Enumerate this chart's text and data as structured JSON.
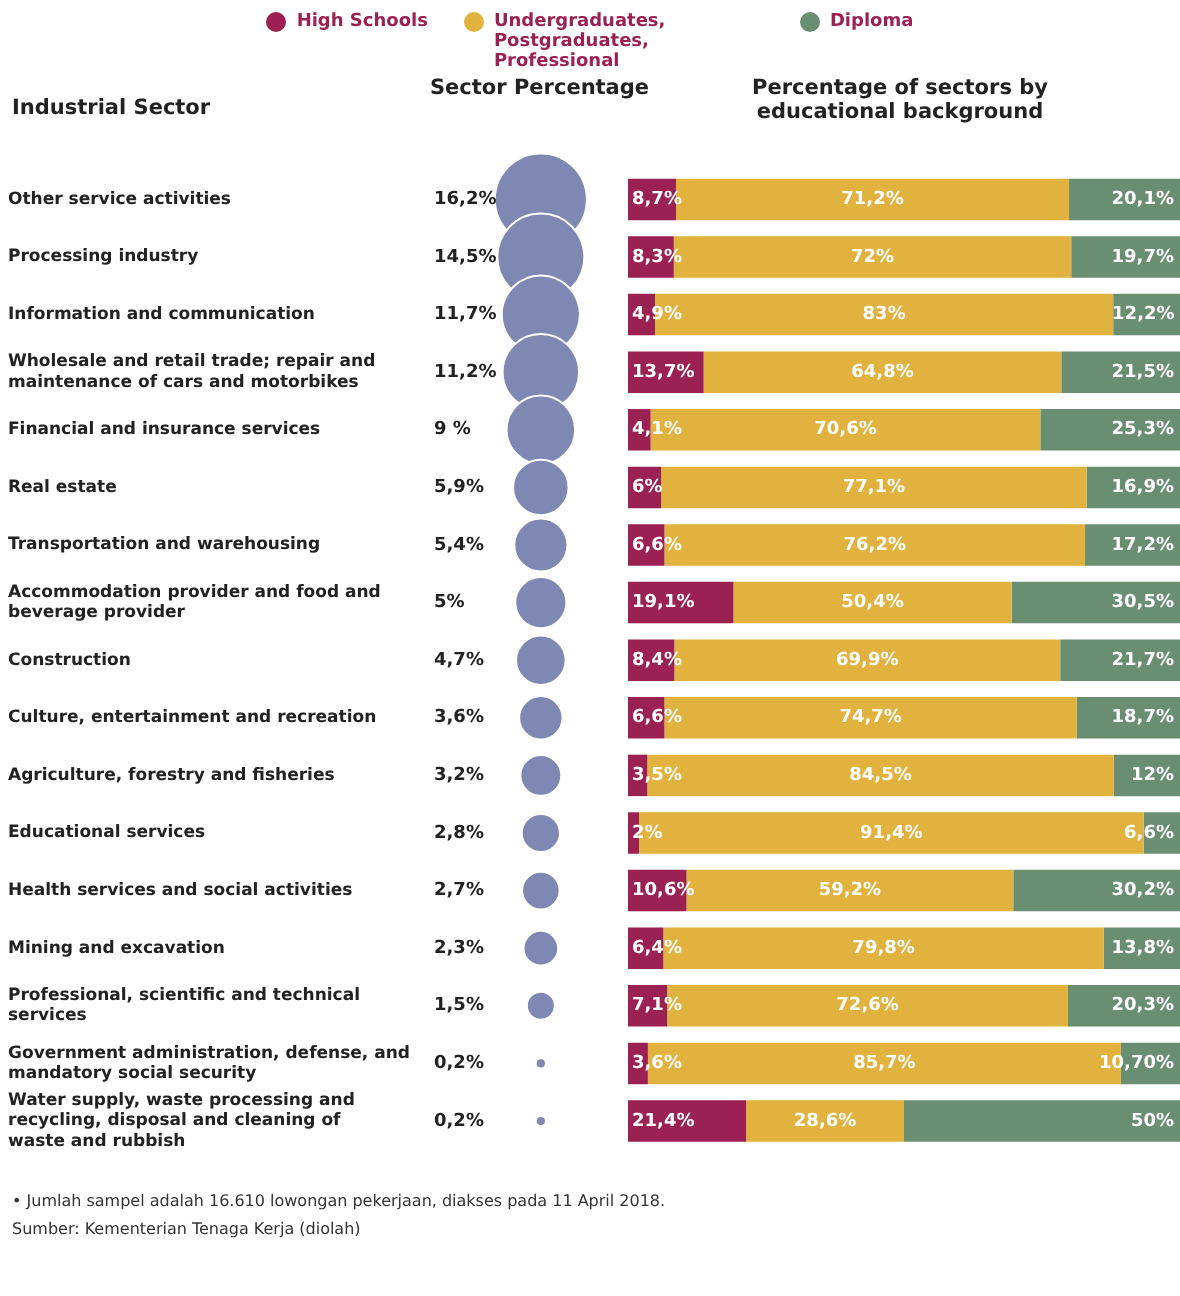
{
  "chart_data": [
    {
      "type": "other",
      "title": "Sector Percentage",
      "color": "#7f88b3",
      "values": [
        16.2,
        14.5,
        11.7,
        11.2,
        9,
        5.9,
        5.4,
        5,
        4.7,
        3.6,
        3.2,
        2.8,
        2.7,
        2.3,
        1.5,
        0.2,
        0.2
      ],
      "value_labels": [
        "16,2%",
        "14,5%",
        "11,7%",
        "11,2%",
        "9 %",
        "5,9%",
        "5,4%",
        "5%",
        "4,7%",
        "3,6%",
        "3,2%",
        "2,8%",
        "2,7%",
        "2,3%",
        "1,5%",
        "0,2%",
        "0,2%"
      ]
    },
    {
      "type": "bar",
      "orientation": "horizontal",
      "stacked": true,
      "title": "Percentage of sectors by educational background",
      "ylabel": "Industrial Sector",
      "legend": "top",
      "tick_labels": "y",
      "xlim": [
        0,
        100
      ],
      "categories": [
        "Other service activities",
        "Processing industry",
        "Information and communication",
        "Wholesale and retail trade; repair and maintenance of cars and motorbikes",
        "Financial and insurance services",
        "Real estate",
        "Transportation and warehousing",
        "Accommodation provider and food and beverage provider",
        "Construction",
        "Culture, entertainment and recreation",
        "Agriculture, forestry and fisheries",
        "Educational services",
        "Health services and social activities",
        "Mining and excavation",
        "Professional, scientific and technical services",
        "Government administration, defense, and mandatory social security",
        "Water supply, waste processing and recycling, disposal and cleaning of waste and rubbish"
      ],
      "series": [
        {
          "name": "High Schools",
          "color": "#9c2153",
          "values": [
            8.7,
            8.3,
            4.9,
            13.7,
            4.1,
            6,
            6.6,
            19.1,
            8.4,
            6.6,
            3.5,
            2,
            10.6,
            6.4,
            7.1,
            3.6,
            21.4
          ],
          "value_labels": [
            "8,7%",
            "8,3%",
            "4,9%",
            "13,7%",
            "4,1%",
            "6%",
            "6,6%",
            "19,1%",
            "8,4%",
            "6,6%",
            "3,5%",
            "2%",
            "10,6%",
            "6,4%",
            "7,1%",
            "3,6%",
            "21,4%"
          ]
        },
        {
          "name": "Undergraduates, Postgraduates, Professional",
          "color": "#e2b23e",
          "values": [
            71.2,
            72,
            83,
            64.8,
            70.6,
            77.1,
            76.2,
            50.4,
            69.9,
            74.7,
            84.5,
            91.4,
            59.2,
            79.8,
            72.6,
            85.7,
            28.6
          ],
          "value_labels": [
            "71,2%",
            "72%",
            "83%",
            "64,8%",
            "70,6%",
            "77,1%",
            "76,2%",
            "50,4%",
            "69,9%",
            "74,7%",
            "84,5%",
            "91,4%",
            "59,2%",
            "79,8%",
            "72,6%",
            "85,7%",
            "28,6%"
          ]
        },
        {
          "name": "Diploma",
          "color": "#6a8e72",
          "values": [
            20.1,
            19.7,
            12.2,
            21.5,
            25.3,
            16.9,
            17.2,
            30.5,
            21.7,
            18.7,
            12,
            6.6,
            30.2,
            13.8,
            20.3,
            10.7,
            50
          ],
          "value_labels": [
            "20,1%",
            "19,7%",
            "12,2%",
            "21,5%",
            "25,3%",
            "16,9%",
            "17,2%",
            "30,5%",
            "21,7%",
            "18,7%",
            "12%",
            "6,6%",
            "30,2%",
            "13,8%",
            "20,3%",
            "10,70%",
            "50%"
          ]
        }
      ],
      "annotations": [
        "• Jumlah sampel adalah 16.610 lowongan pekerjaan, diakses pada 11 April 2018.",
        "Sumber: Kementerian Tenaga Kerja (diolah)"
      ]
    }
  ]
}
